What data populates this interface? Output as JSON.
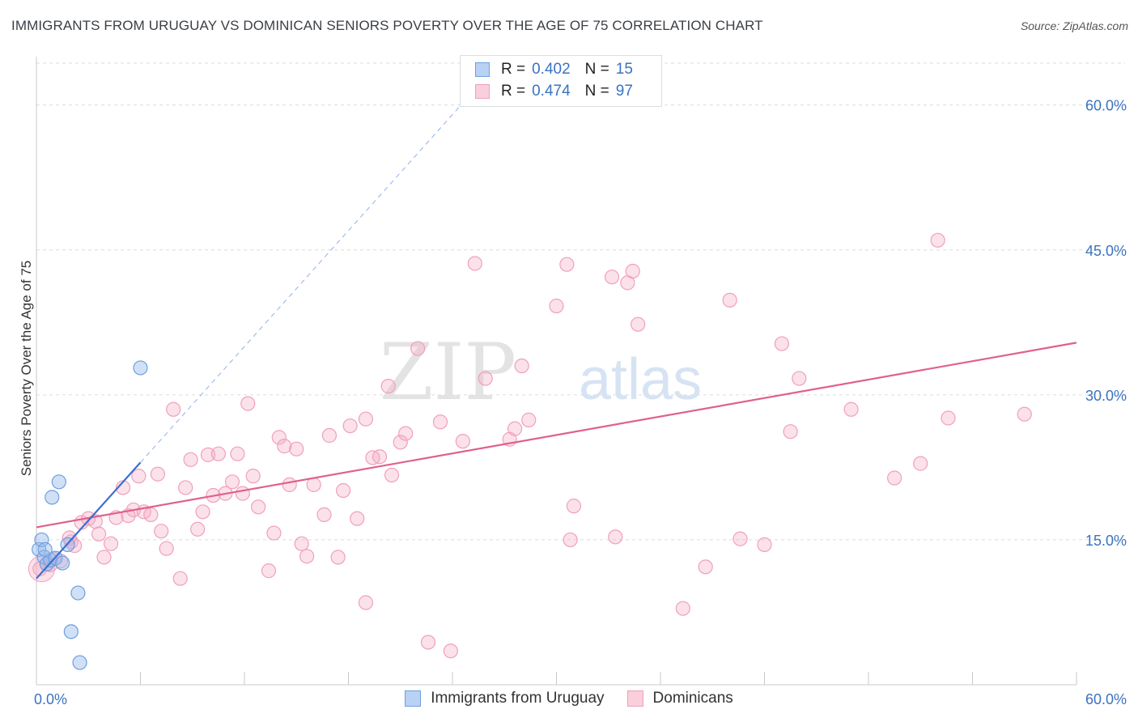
{
  "title": "IMMIGRANTS FROM URUGUAY VS DOMINICAN SENIORS POVERTY OVER THE AGE OF 75 CORRELATION CHART",
  "source": "Source: ZipAtlas.com",
  "watermark": {
    "zip": "ZIP",
    "atlas": "atlas"
  },
  "legend": {
    "r_label": "R =",
    "n_label": "N =",
    "series": [
      {
        "name": "Immigrants from Uruguay",
        "r": "0.402",
        "n": "15"
      },
      {
        "name": "Dominicans",
        "r": "0.474",
        "n": "97"
      }
    ]
  },
  "chart_data": {
    "type": "scatter",
    "title": "IMMIGRANTS FROM URUGUAY VS DOMINICAN SENIORS POVERTY OVER THE AGE OF 75 CORRELATION CHART",
    "xlabel": "",
    "ylabel": "Seniors Poverty Over the Age of 75",
    "xlim": [
      0,
      60
    ],
    "ylim": [
      0,
      65
    ],
    "x_tick_labels": [
      {
        "value": 0,
        "label": "0.0%"
      },
      {
        "value": 60,
        "label": "60.0%"
      }
    ],
    "y_tick_labels": [
      {
        "value": 15,
        "label": "15.0%"
      },
      {
        "value": 30,
        "label": "30.0%"
      },
      {
        "value": 45,
        "label": "45.0%"
      },
      {
        "value": 60,
        "label": "60.0%"
      }
    ],
    "grid": true,
    "colors": {
      "uruguay": "#6e9fe0",
      "uruguay_line": "#3a6fd0",
      "dominican": "#f0a0bb",
      "dominican_line": "#e0608e"
    },
    "series": [
      {
        "name": "Immigrants from Uruguay",
        "points": [
          [
            0.15,
            14.0
          ],
          [
            0.3,
            15.0
          ],
          [
            0.45,
            13.2
          ],
          [
            0.6,
            12.5
          ],
          [
            0.8,
            12.9
          ],
          [
            0.9,
            19.4
          ],
          [
            1.1,
            13.1
          ],
          [
            1.3,
            21.0
          ],
          [
            1.5,
            12.6
          ],
          [
            1.8,
            14.5
          ],
          [
            2.0,
            5.5
          ],
          [
            2.4,
            9.5
          ],
          [
            2.5,
            2.3
          ],
          [
            6.0,
            32.8
          ],
          [
            0.5,
            14.0
          ]
        ],
        "trend": {
          "x": [
            0,
            6.0
          ],
          "y": [
            11.0,
            23.0
          ],
          "dashed_extension_to": [
            24.5,
            60.0
          ]
        }
      },
      {
        "name": "Dominicans",
        "points": [
          [
            0.2,
            12.0
          ],
          [
            0.6,
            12.5
          ],
          [
            0.8,
            12.4
          ],
          [
            1.0,
            13.0
          ],
          [
            1.4,
            12.8
          ],
          [
            1.9,
            15.2
          ],
          [
            2.0,
            14.8
          ],
          [
            2.2,
            14.4
          ],
          [
            2.6,
            16.8
          ],
          [
            3.0,
            17.2
          ],
          [
            3.4,
            16.9
          ],
          [
            3.6,
            15.6
          ],
          [
            3.9,
            13.2
          ],
          [
            4.3,
            14.6
          ],
          [
            4.6,
            17.3
          ],
          [
            5.0,
            20.4
          ],
          [
            5.3,
            17.5
          ],
          [
            5.6,
            18.1
          ],
          [
            5.9,
            21.6
          ],
          [
            6.2,
            17.9
          ],
          [
            6.6,
            17.6
          ],
          [
            7.0,
            21.8
          ],
          [
            7.2,
            15.9
          ],
          [
            7.5,
            14.1
          ],
          [
            7.9,
            28.5
          ],
          [
            8.3,
            11.0
          ],
          [
            8.6,
            20.4
          ],
          [
            8.9,
            23.3
          ],
          [
            9.3,
            16.1
          ],
          [
            9.6,
            17.9
          ],
          [
            9.9,
            23.8
          ],
          [
            10.2,
            19.6
          ],
          [
            10.5,
            23.9
          ],
          [
            10.9,
            19.8
          ],
          [
            11.3,
            21.0
          ],
          [
            11.6,
            23.9
          ],
          [
            11.9,
            19.8
          ],
          [
            12.2,
            29.1
          ],
          [
            12.5,
            21.6
          ],
          [
            12.8,
            18.4
          ],
          [
            13.4,
            11.8
          ],
          [
            13.7,
            15.7
          ],
          [
            14.0,
            25.6
          ],
          [
            14.3,
            24.7
          ],
          [
            14.6,
            20.7
          ],
          [
            15.0,
            24.4
          ],
          [
            15.3,
            14.6
          ],
          [
            15.6,
            13.3
          ],
          [
            16.0,
            20.7
          ],
          [
            16.6,
            17.6
          ],
          [
            16.9,
            25.8
          ],
          [
            17.4,
            13.2
          ],
          [
            17.7,
            20.1
          ],
          [
            18.1,
            26.8
          ],
          [
            18.5,
            17.2
          ],
          [
            19.0,
            27.5
          ],
          [
            19.0,
            8.5
          ],
          [
            19.4,
            23.5
          ],
          [
            19.8,
            23.6
          ],
          [
            20.3,
            30.9
          ],
          [
            20.5,
            21.7
          ],
          [
            21.0,
            25.1
          ],
          [
            21.3,
            26.0
          ],
          [
            22.0,
            34.8
          ],
          [
            22.6,
            4.4
          ],
          [
            23.3,
            27.2
          ],
          [
            23.9,
            3.5
          ],
          [
            24.6,
            25.2
          ],
          [
            25.3,
            43.6
          ],
          [
            25.9,
            31.7
          ],
          [
            27.3,
            25.4
          ],
          [
            27.6,
            26.5
          ],
          [
            28.0,
            33.0
          ],
          [
            28.4,
            27.4
          ],
          [
            30.0,
            39.2
          ],
          [
            30.6,
            43.5
          ],
          [
            30.8,
            15.0
          ],
          [
            31.0,
            18.5
          ],
          [
            33.2,
            42.2
          ],
          [
            33.4,
            15.3
          ],
          [
            34.1,
            41.6
          ],
          [
            34.4,
            42.8
          ],
          [
            34.7,
            37.3
          ],
          [
            37.3,
            7.9
          ],
          [
            38.6,
            12.2
          ],
          [
            40.0,
            39.8
          ],
          [
            40.6,
            15.1
          ],
          [
            42.0,
            14.5
          ],
          [
            43.0,
            35.3
          ],
          [
            43.5,
            26.2
          ],
          [
            44.0,
            31.7
          ],
          [
            47.0,
            28.5
          ],
          [
            49.5,
            21.4
          ],
          [
            51.0,
            22.9
          ],
          [
            52.0,
            46.0
          ],
          [
            52.6,
            27.6
          ],
          [
            57.0,
            28.0
          ]
        ],
        "trend": {
          "x": [
            0,
            60
          ],
          "y": [
            16.3,
            35.4
          ]
        }
      }
    ]
  }
}
